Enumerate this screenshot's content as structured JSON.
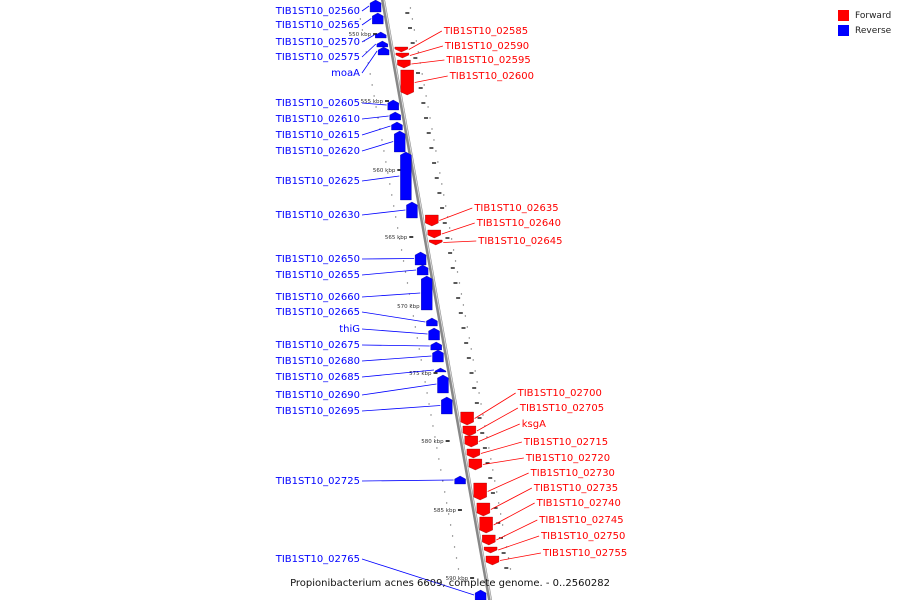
{
  "caption": "Propionibacterium acnes 6609, complete genome. - 0..2560282",
  "legend": [
    {
      "label": "Forward",
      "color": "#ff0000"
    },
    {
      "label": "Reverse",
      "color": "#0000ff"
    }
  ],
  "colors": {
    "forward": "#ff0000",
    "reverse": "#0000ff",
    "axis": "#888888",
    "dots": "#777777",
    "ticks": "#000000"
  },
  "scale_labels": [
    "550 kbp",
    "555 kbp",
    "560 kbp",
    "565 kbp",
    "570 kbp",
    "575 kbp",
    "580 kbp",
    "585 kbp",
    "590 kbp"
  ],
  "reverse_genes": [
    "TIB1ST10_02560",
    "TIB1ST10_02565",
    "TIB1ST10_02570",
    "TIB1ST10_02575",
    "moaA",
    "TIB1ST10_02605",
    "TIB1ST10_02610",
    "TIB1ST10_02615",
    "TIB1ST10_02620",
    "TIB1ST10_02625",
    "TIB1ST10_02630",
    "TIB1ST10_02650",
    "TIB1ST10_02655",
    "TIB1ST10_02660",
    "TIB1ST10_02665",
    "thiG",
    "TIB1ST10_02675",
    "TIB1ST10_02680",
    "TIB1ST10_02685",
    "TIB1ST10_02690",
    "TIB1ST10_02695",
    "TIB1ST10_02725",
    "TIB1ST10_02765"
  ],
  "forward_genes": [
    "TIB1ST10_02585",
    "TIB1ST10_02590",
    "TIB1ST10_02595",
    "TIB1ST10_02600",
    "TIB1ST10_02635",
    "TIB1ST10_02640",
    "TIB1ST10_02645",
    "TIB1ST10_02700",
    "TIB1ST10_02705",
    "ksgA",
    "TIB1ST10_02715",
    "TIB1ST10_02720",
    "TIB1ST10_02730",
    "TIB1ST10_02735",
    "TIB1ST10_02740",
    "TIB1ST10_02745",
    "TIB1ST10_02750",
    "TIB1ST10_02755"
  ]
}
